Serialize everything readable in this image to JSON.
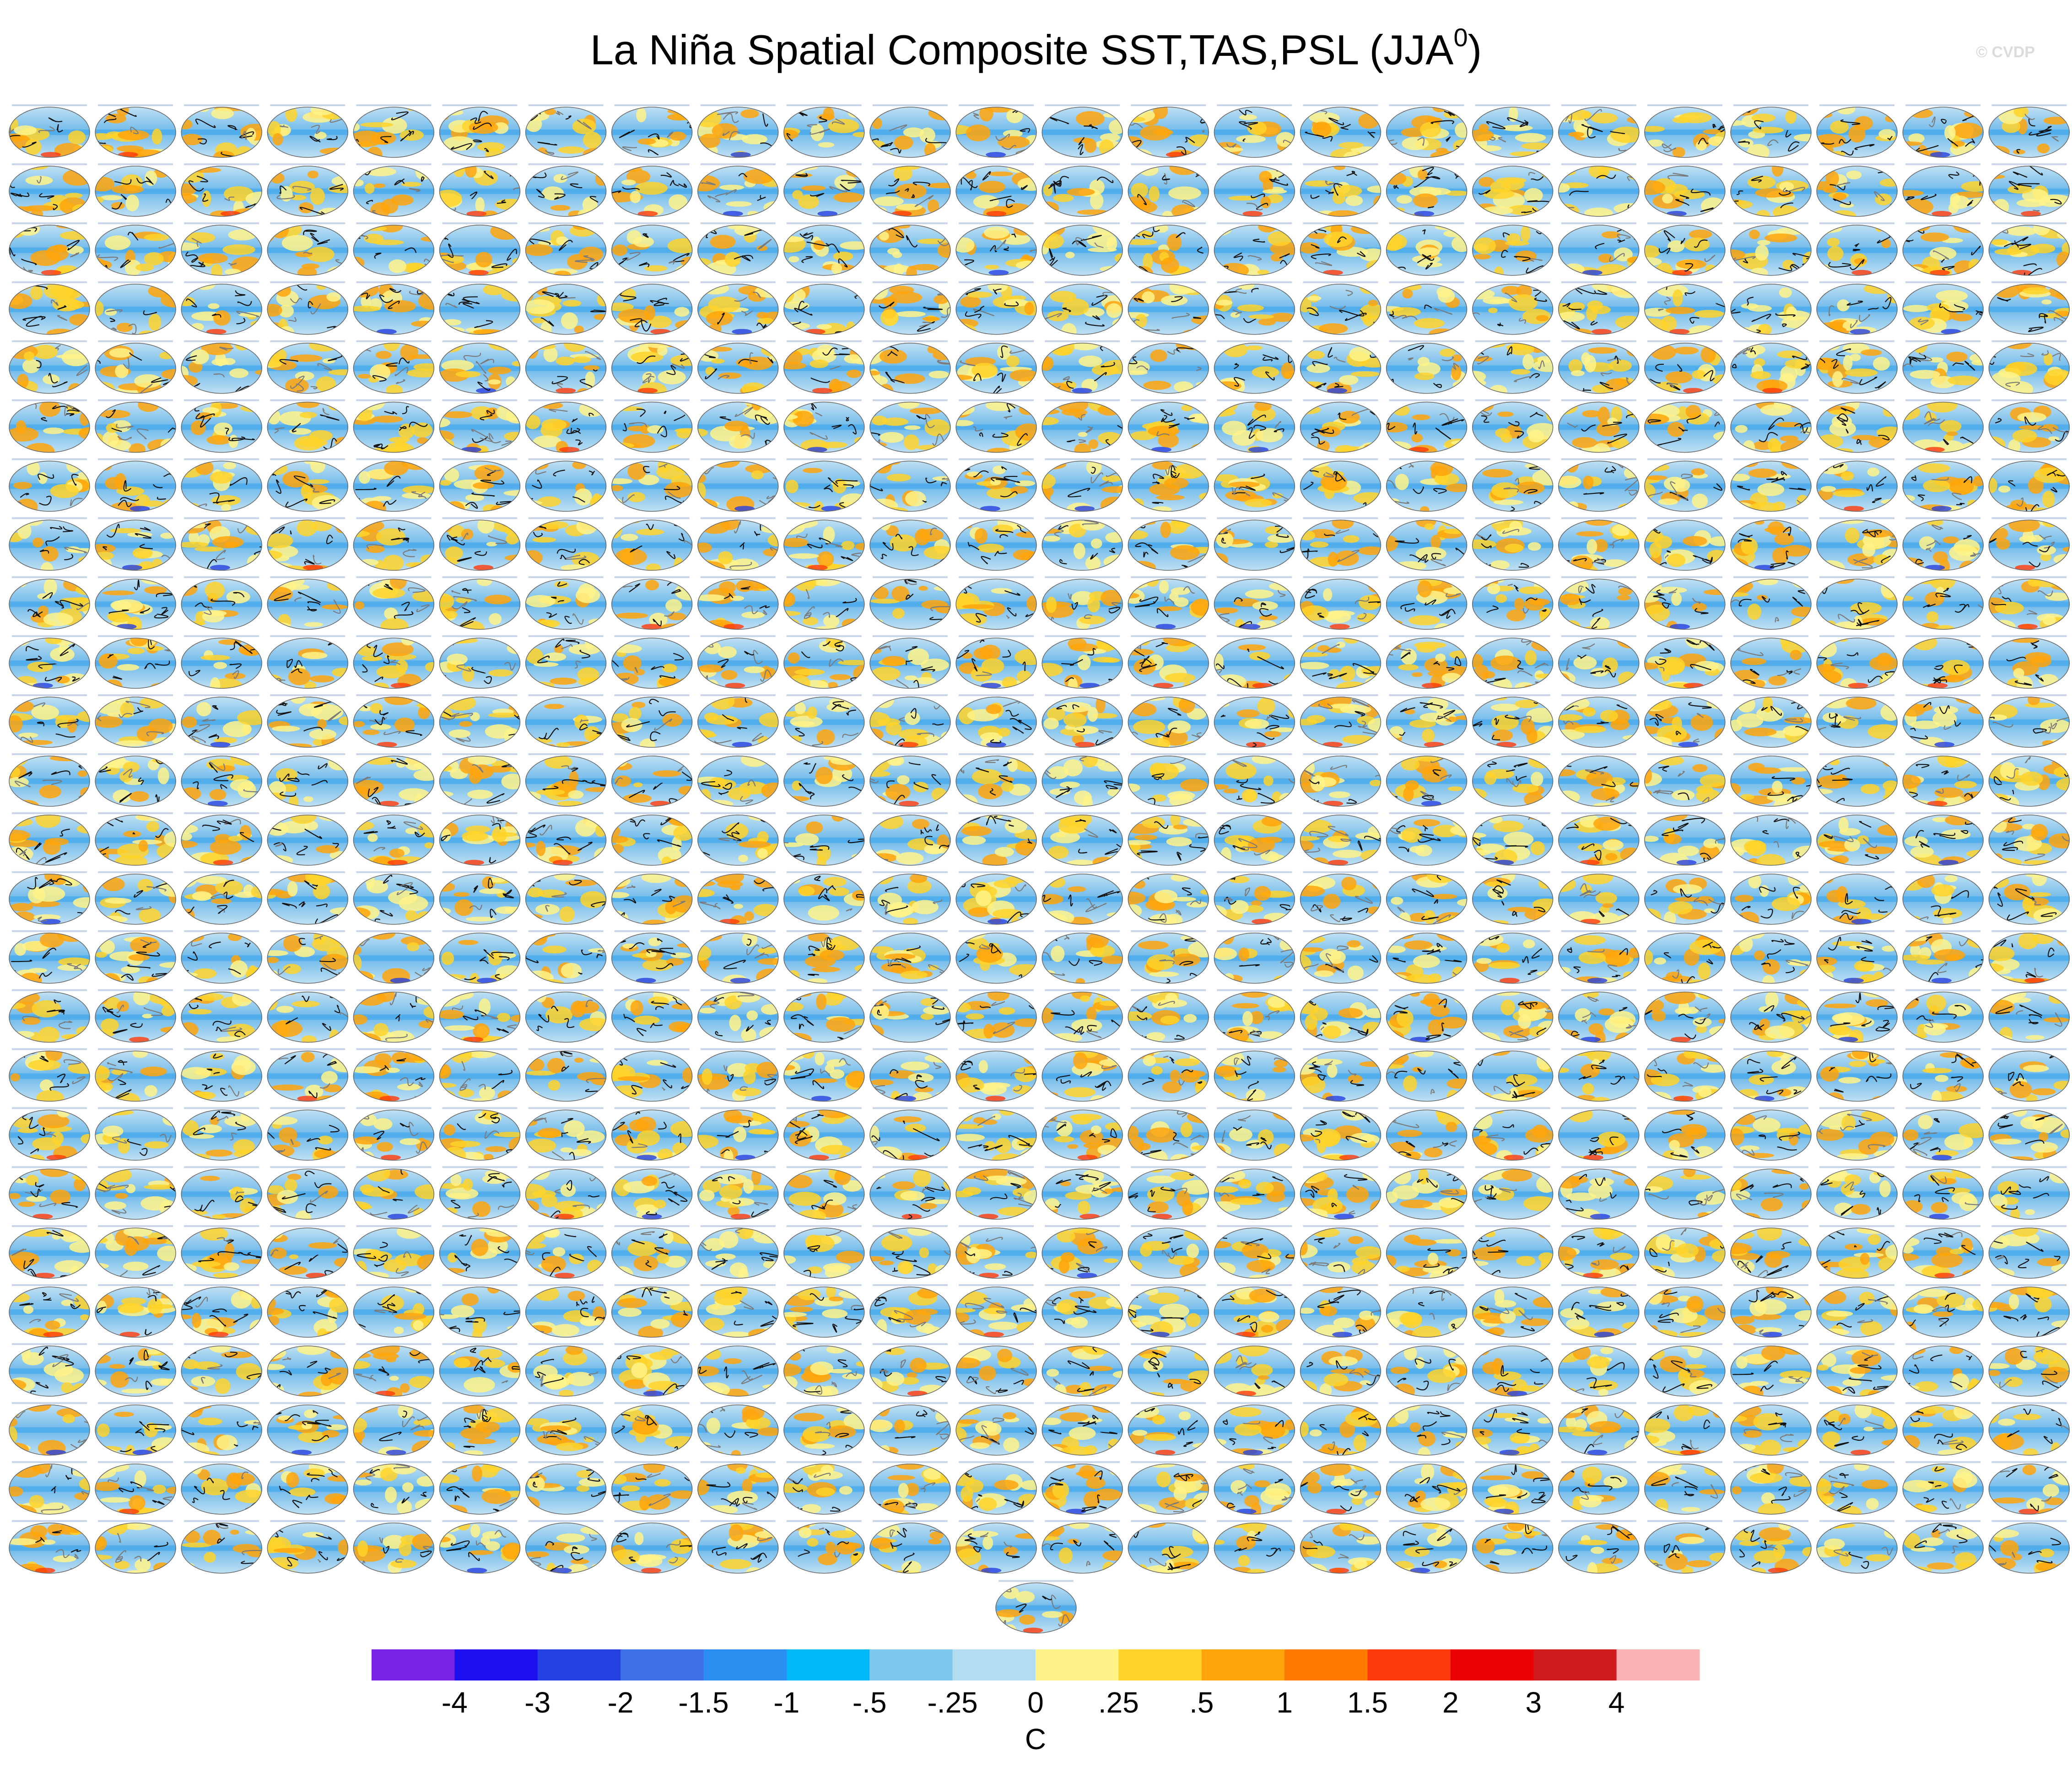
{
  "chart_data": {
    "type": "heatmap",
    "title_main": "La Niña Spatial Composite SST,TAS,PSL (JJA",
    "title_sup": "0",
    "title_tail": ")",
    "watermark": "© CVDP",
    "panel_grid": {
      "rows": 25,
      "cols": 24,
      "extra_panels": 1
    },
    "colorbar": {
      "unit": "C",
      "colors": [
        "#7b22e8",
        "#1f10f0",
        "#2540e0",
        "#3f6fe6",
        "#2a8ff0",
        "#00b8f8",
        "#7ec8ee",
        "#b4ddf2",
        "#fff38a",
        "#ffd42a",
        "#ffa50a",
        "#ff7b00",
        "#ff3a0a",
        "#ea0000",
        "#cf1d1d",
        "#fbb4b4"
      ],
      "ticks": [
        "-4",
        "-3",
        "-2",
        "-1.5",
        "-1",
        "-.5",
        "-.25",
        "0",
        ".25",
        ".5",
        "1",
        "1.5",
        "2",
        "3",
        "4"
      ]
    }
  }
}
